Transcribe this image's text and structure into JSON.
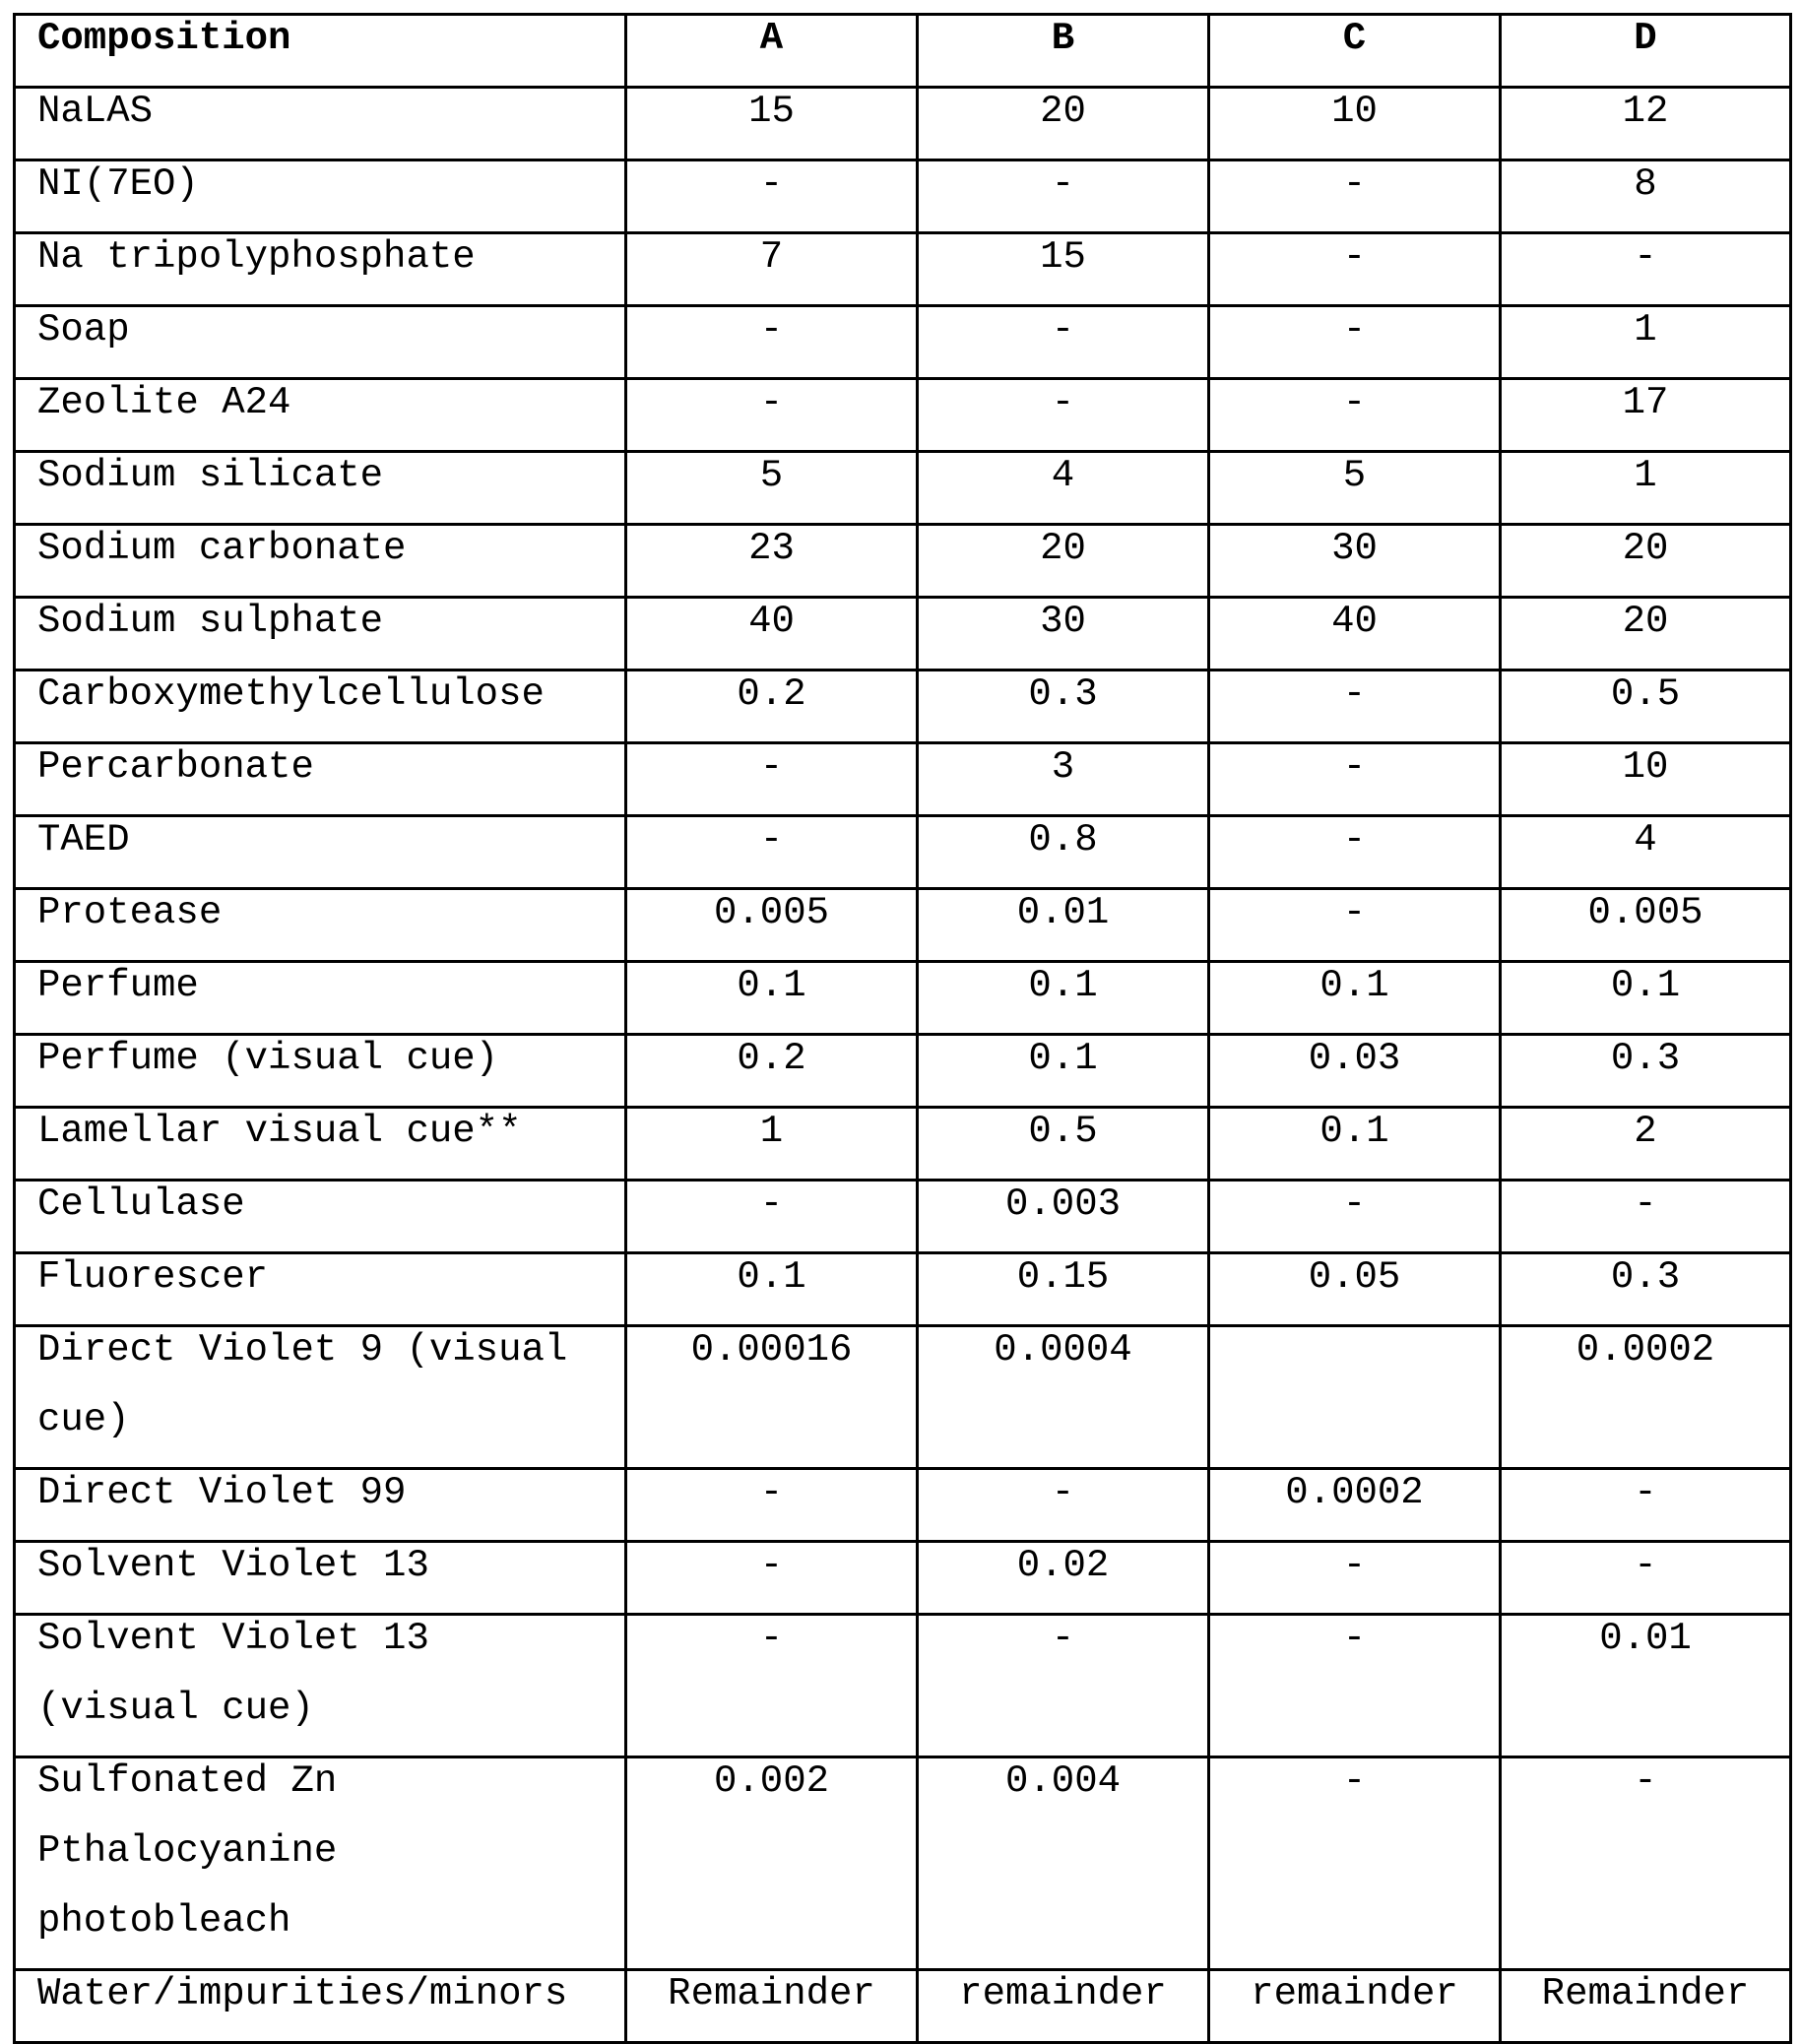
{
  "header": [
    "Composition",
    "A",
    "B",
    "C",
    "D"
  ],
  "rows": [
    [
      "NaLAS",
      "15",
      "20",
      "10",
      "12"
    ],
    [
      "NI(7EO)",
      "-",
      "-",
      "-",
      "8"
    ],
    [
      "Na tripolyphosphate",
      "7",
      "15",
      "-",
      "-"
    ],
    [
      "Soap",
      "-",
      "-",
      "-",
      "1"
    ],
    [
      "Zeolite A24",
      "-",
      "-",
      "-",
      "17"
    ],
    [
      "Sodium silicate",
      "5",
      "4",
      "5",
      "1"
    ],
    [
      "Sodium carbonate",
      "23",
      "20",
      "30",
      "20"
    ],
    [
      "Sodium sulphate",
      "40",
      "30",
      "40",
      "20"
    ],
    [
      "Carboxymethylcellulose",
      "0.2",
      "0.3",
      "-",
      "0.5"
    ],
    [
      "Percarbonate",
      "-",
      "3",
      "-",
      "10"
    ],
    [
      "TAED",
      "-",
      "0.8",
      "-",
      "4"
    ],
    [
      "Protease",
      "0.005",
      "0.01",
      "-",
      "0.005"
    ],
    [
      "Perfume",
      "0.1",
      "0.1",
      "0.1",
      "0.1"
    ],
    [
      "Perfume (visual cue)",
      "0.2",
      "0.1",
      "0.03",
      "0.3"
    ],
    [
      "Lamellar visual cue**",
      "1",
      "0.5",
      "0.1",
      "2"
    ],
    [
      "Cellulase",
      "-",
      "0.003",
      "-",
      "-"
    ],
    [
      "Fluorescer",
      "0.1",
      "0.15",
      "0.05",
      "0.3"
    ],
    [
      "Direct Violet 9 (visual cue)",
      "0.00016",
      "0.0004",
      "",
      "0.0002"
    ],
    [
      "Direct Violet 99",
      "-",
      "-",
      "0.0002",
      "-"
    ],
    [
      "Solvent Violet 13",
      "-",
      "0.02",
      "-",
      "-"
    ],
    [
      "Solvent Violet 13 (visual cue)",
      "-",
      "-",
      "-",
      "0.01"
    ],
    [
      "Sulfonated Zn Pthalocyanine photobleach",
      "0.002",
      "0.004",
      "-",
      "-"
    ],
    [
      "Water/impurities/minors",
      "Remainder",
      "remainder",
      "remainder",
      "Remainder"
    ]
  ]
}
